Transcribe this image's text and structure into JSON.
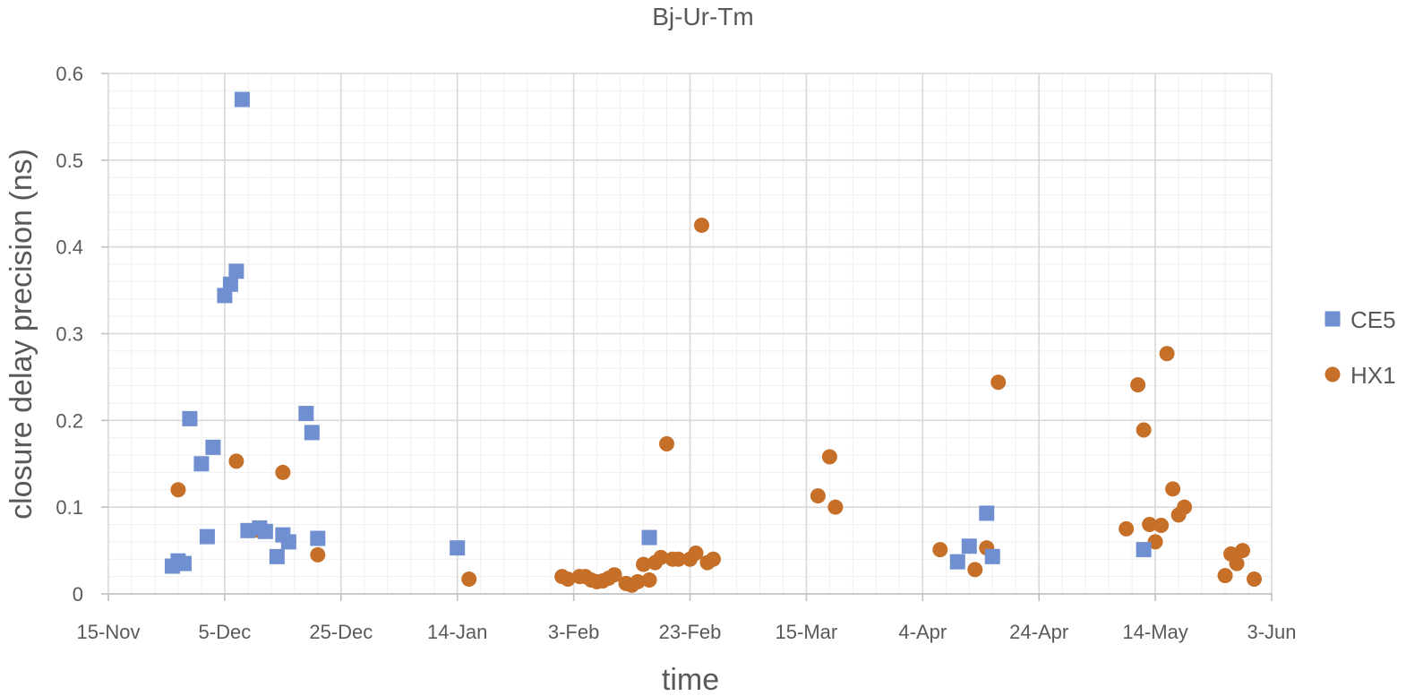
{
  "chart_data": {
    "type": "scatter",
    "title": "Bj-Ur-Tm",
    "xlabel": "time",
    "ylabel": "closure delay precision (ns)",
    "x_ticks": [
      "15-Nov",
      "5-Dec",
      "25-Dec",
      "14-Jan",
      "3-Feb",
      "23-Feb",
      "15-Mar",
      "4-Apr",
      "24-Apr",
      "14-May",
      "3-Jun"
    ],
    "y_ticks": [
      "0",
      "0.1",
      "0.2",
      "0.3",
      "0.4",
      "0.5",
      "0.6"
    ],
    "x_range": [
      "15-Nov",
      "3-Jun"
    ],
    "ylim": [
      0,
      0.6
    ],
    "grid": true,
    "legend_position": "right",
    "series": [
      {
        "name": "CE5",
        "marker": "square",
        "color": "#6f8fd0",
        "points": [
          {
            "x": "26-Nov",
            "y": 0.032
          },
          {
            "x": "27-Nov",
            "y": 0.038
          },
          {
            "x": "28-Nov",
            "y": 0.035
          },
          {
            "x": "29-Nov",
            "y": 0.202
          },
          {
            "x": "1-Dec",
            "y": 0.15
          },
          {
            "x": "2-Dec",
            "y": 0.066
          },
          {
            "x": "3-Dec",
            "y": 0.169
          },
          {
            "x": "5-Dec",
            "y": 0.344
          },
          {
            "x": "6-Dec",
            "y": 0.357
          },
          {
            "x": "7-Dec",
            "y": 0.372
          },
          {
            "x": "8-Dec",
            "y": 0.57
          },
          {
            "x": "9-Dec",
            "y": 0.073
          },
          {
            "x": "11-Dec",
            "y": 0.076
          },
          {
            "x": "12-Dec",
            "y": 0.072
          },
          {
            "x": "14-Dec",
            "y": 0.043
          },
          {
            "x": "15-Dec",
            "y": 0.068
          },
          {
            "x": "16-Dec",
            "y": 0.06
          },
          {
            "x": "19-Dec",
            "y": 0.208
          },
          {
            "x": "20-Dec",
            "y": 0.186
          },
          {
            "x": "21-Dec",
            "y": 0.064
          },
          {
            "x": "14-Jan",
            "y": 0.053
          },
          {
            "x": "16-Feb",
            "y": 0.065
          },
          {
            "x": "10-Apr",
            "y": 0.037
          },
          {
            "x": "12-Apr",
            "y": 0.055
          },
          {
            "x": "15-Apr",
            "y": 0.093
          },
          {
            "x": "16-Apr",
            "y": 0.043
          },
          {
            "x": "12-May",
            "y": 0.051
          }
        ]
      },
      {
        "name": "HX1",
        "marker": "circle",
        "color": "#c56f29",
        "points": [
          {
            "x": "27-Nov",
            "y": 0.12
          },
          {
            "x": "7-Dec",
            "y": 0.153
          },
          {
            "x": "11-Dec",
            "y": 0.073
          },
          {
            "x": "15-Dec",
            "y": 0.14
          },
          {
            "x": "21-Dec",
            "y": 0.045
          },
          {
            "x": "16-Jan",
            "y": 0.017
          },
          {
            "x": "1-Feb",
            "y": 0.02
          },
          {
            "x": "2-Feb",
            "y": 0.017
          },
          {
            "x": "4-Feb",
            "y": 0.02
          },
          {
            "x": "5-Feb",
            "y": 0.02
          },
          {
            "x": "6-Feb",
            "y": 0.016
          },
          {
            "x": "7-Feb",
            "y": 0.014
          },
          {
            "x": "8-Feb",
            "y": 0.015
          },
          {
            "x": "9-Feb",
            "y": 0.018
          },
          {
            "x": "10-Feb",
            "y": 0.022
          },
          {
            "x": "12-Feb",
            "y": 0.012
          },
          {
            "x": "13-Feb",
            "y": 0.01
          },
          {
            "x": "14-Feb",
            "y": 0.014
          },
          {
            "x": "15-Feb",
            "y": 0.034
          },
          {
            "x": "16-Feb",
            "y": 0.016
          },
          {
            "x": "17-Feb",
            "y": 0.036
          },
          {
            "x": "18-Feb",
            "y": 0.042
          },
          {
            "x": "19-Feb",
            "y": 0.173
          },
          {
            "x": "20-Feb",
            "y": 0.04
          },
          {
            "x": "21-Feb",
            "y": 0.04
          },
          {
            "x": "23-Feb",
            "y": 0.04
          },
          {
            "x": "24-Feb",
            "y": 0.047
          },
          {
            "x": "25-Feb",
            "y": 0.425
          },
          {
            "x": "26-Feb",
            "y": 0.036
          },
          {
            "x": "27-Feb",
            "y": 0.04
          },
          {
            "x": "17-Mar",
            "y": 0.113
          },
          {
            "x": "19-Mar",
            "y": 0.158
          },
          {
            "x": "20-Mar",
            "y": 0.1
          },
          {
            "x": "7-Apr",
            "y": 0.051
          },
          {
            "x": "13-Apr",
            "y": 0.028
          },
          {
            "x": "15-Apr",
            "y": 0.053
          },
          {
            "x": "17-Apr",
            "y": 0.244
          },
          {
            "x": "9-May",
            "y": 0.075
          },
          {
            "x": "11-May",
            "y": 0.241
          },
          {
            "x": "12-May",
            "y": 0.189
          },
          {
            "x": "13-May",
            "y": 0.08
          },
          {
            "x": "14-May",
            "y": 0.06
          },
          {
            "x": "15-May",
            "y": 0.079
          },
          {
            "x": "16-May",
            "y": 0.277
          },
          {
            "x": "17-May",
            "y": 0.121
          },
          {
            "x": "18-May",
            "y": 0.091
          },
          {
            "x": "19-May",
            "y": 0.1
          },
          {
            "x": "26-May",
            "y": 0.021
          },
          {
            "x": "27-May",
            "y": 0.046
          },
          {
            "x": "28-May",
            "y": 0.035
          },
          {
            "x": "29-May",
            "y": 0.05
          },
          {
            "x": "31-May",
            "y": 0.017
          }
        ]
      }
    ]
  }
}
